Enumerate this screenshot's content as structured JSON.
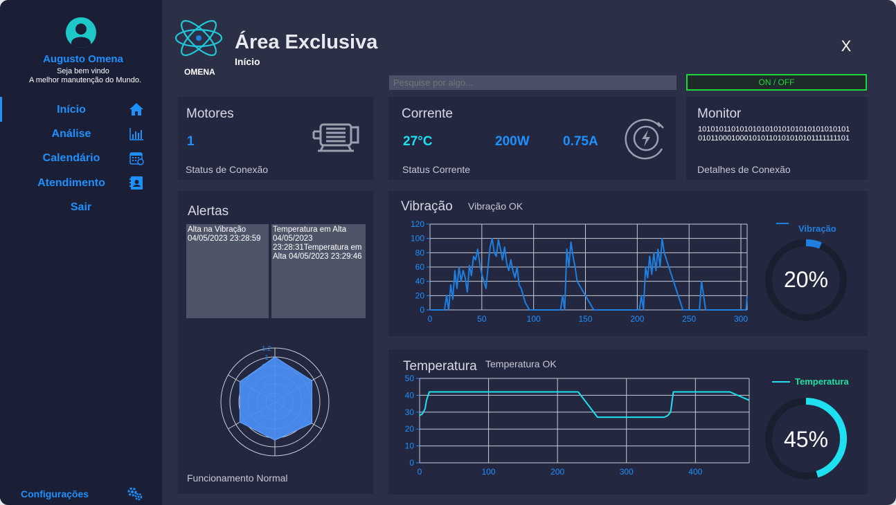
{
  "sidebar": {
    "user_name": "Augusto Omena",
    "welcome": "Seja bem vindo",
    "motto": "A melhor manutenção do Mundo.",
    "nav": [
      {
        "label": "Início",
        "icon": "home-icon"
      },
      {
        "label": "Análise",
        "icon": "bar-chart-icon"
      },
      {
        "label": "Calendário",
        "icon": "calendar-icon"
      },
      {
        "label": "Atendimento",
        "icon": "contact-book-icon"
      },
      {
        "label": "Sair",
        "icon": ""
      }
    ],
    "config_label": "Configurações",
    "config_icon": "gears-icon"
  },
  "header": {
    "logo_text": "OMENA",
    "title": "Área Exclusiva",
    "subtitle": "Início",
    "close_label": "X",
    "search_placeholder": "Pesquise por algo...",
    "toggle_label": "ON / OFF"
  },
  "cards": {
    "motores": {
      "title": "Motores",
      "value": "1",
      "footer": "Status de Conexão",
      "icon": "motor-icon"
    },
    "corrente": {
      "title": "Corrente",
      "temp": "27°C",
      "power": "200W",
      "current": "0.75A",
      "footer": "Status Corrente",
      "icon": "energy-plug-icon"
    },
    "monitor": {
      "title": "Monitor",
      "binary": "1010101101010101010101010101010101010101100010001010110101010101111111101",
      "footer": "Detalhes de Conexão"
    },
    "alertas": {
      "title": "Alertas",
      "items": [
        "Alta na Vibração 04/05/2023 23:28:59",
        "Temperatura em Alta 04/05/2023 23:28:31Temperatura em Alta 04/05/2023 23:29:46"
      ],
      "footer": "Funcionamento Normal"
    },
    "vibracao": {
      "title": "Vibração",
      "status": "Vibração OK",
      "legend": "Vibração",
      "percent": "20%"
    },
    "temperatura": {
      "title": "Temperatura",
      "status": "Temperatura OK",
      "legend": "Temperatura",
      "percent": "45%"
    }
  },
  "colors": {
    "accent": "#1e90ff",
    "cyan": "#1fe0f0",
    "green": "#21d63b",
    "radar_fill": "#4a8cf0"
  },
  "chart_data": [
    {
      "type": "line",
      "series": [
        {
          "name": "Vibração",
          "color": "#1e7fe0",
          "x": [
            0,
            12,
            14,
            16,
            18,
            20,
            22,
            24,
            26,
            28,
            30,
            32,
            34,
            36,
            38,
            40,
            42,
            44,
            46,
            48,
            50,
            54,
            56,
            58,
            60,
            62,
            64,
            66,
            68,
            70,
            72,
            74,
            76,
            78,
            80,
            82,
            84,
            86,
            88,
            90,
            92,
            94,
            96,
            98,
            100,
            124,
            126,
            128,
            130,
            132,
            134,
            136,
            138,
            140,
            142,
            158,
            200,
            202,
            204,
            206,
            208,
            210,
            212,
            214,
            216,
            218,
            220,
            222,
            224,
            226,
            244,
            250,
            258,
            260,
            262,
            264,
            266,
            268,
            300,
            305,
            306
          ],
          "y": [
            0,
            0,
            0,
            20,
            0,
            35,
            15,
            55,
            30,
            60,
            40,
            55,
            45,
            25,
            62,
            48,
            75,
            70,
            85,
            65,
            50,
            30,
            60,
            88,
            100,
            80,
            75,
            98,
            85,
            70,
            88,
            65,
            55,
            70,
            55,
            45,
            60,
            35,
            30,
            20,
            10,
            5,
            0,
            0,
            0,
            0,
            0,
            20,
            0,
            85,
            60,
            95,
            75,
            60,
            40,
            0,
            0,
            0,
            20,
            0,
            60,
            45,
            75,
            50,
            80,
            55,
            85,
            60,
            100,
            80,
            0,
            0,
            0,
            0,
            40,
            20,
            0,
            0,
            0,
            0,
            20
          ]
        }
      ],
      "x_ticks": [
        0,
        50,
        100,
        150,
        200,
        250,
        300
      ],
      "y_ticks": [
        0,
        20,
        40,
        60,
        80,
        100,
        120
      ],
      "xlim": [
        0,
        306
      ],
      "ylim": [
        0,
        120
      ],
      "grid": true,
      "legend": "top-right"
    },
    {
      "type": "line",
      "series": [
        {
          "name": "Temperatura",
          "color": "#1fe0f0",
          "x": [
            0,
            4,
            8,
            10,
            14,
            18,
            200,
            225,
            230,
            258,
            345,
            355,
            360,
            364,
            368,
            380,
            450,
            478
          ],
          "y": [
            28,
            29,
            32,
            37,
            42,
            42,
            42,
            42,
            42,
            27,
            27,
            27,
            28,
            30,
            42,
            42,
            42,
            37
          ]
        }
      ],
      "x_ticks": [
        0,
        100,
        200,
        300,
        400
      ],
      "y_ticks": [
        0,
        10,
        20,
        30,
        40,
        50
      ],
      "xlim": [
        0,
        478
      ],
      "ylim": [
        0,
        50
      ],
      "grid": true,
      "legend": "top-right"
    },
    {
      "type": "radar",
      "series": [
        {
          "name": "",
          "values": [
            1.0,
            0.95,
            0.95,
            0.85,
            0.9,
            0.9
          ]
        }
      ],
      "r_ticks": [
        0.2,
        0.4,
        0.6,
        0.8,
        1,
        1.2
      ],
      "rlim": [
        0,
        1.2
      ]
    }
  ]
}
